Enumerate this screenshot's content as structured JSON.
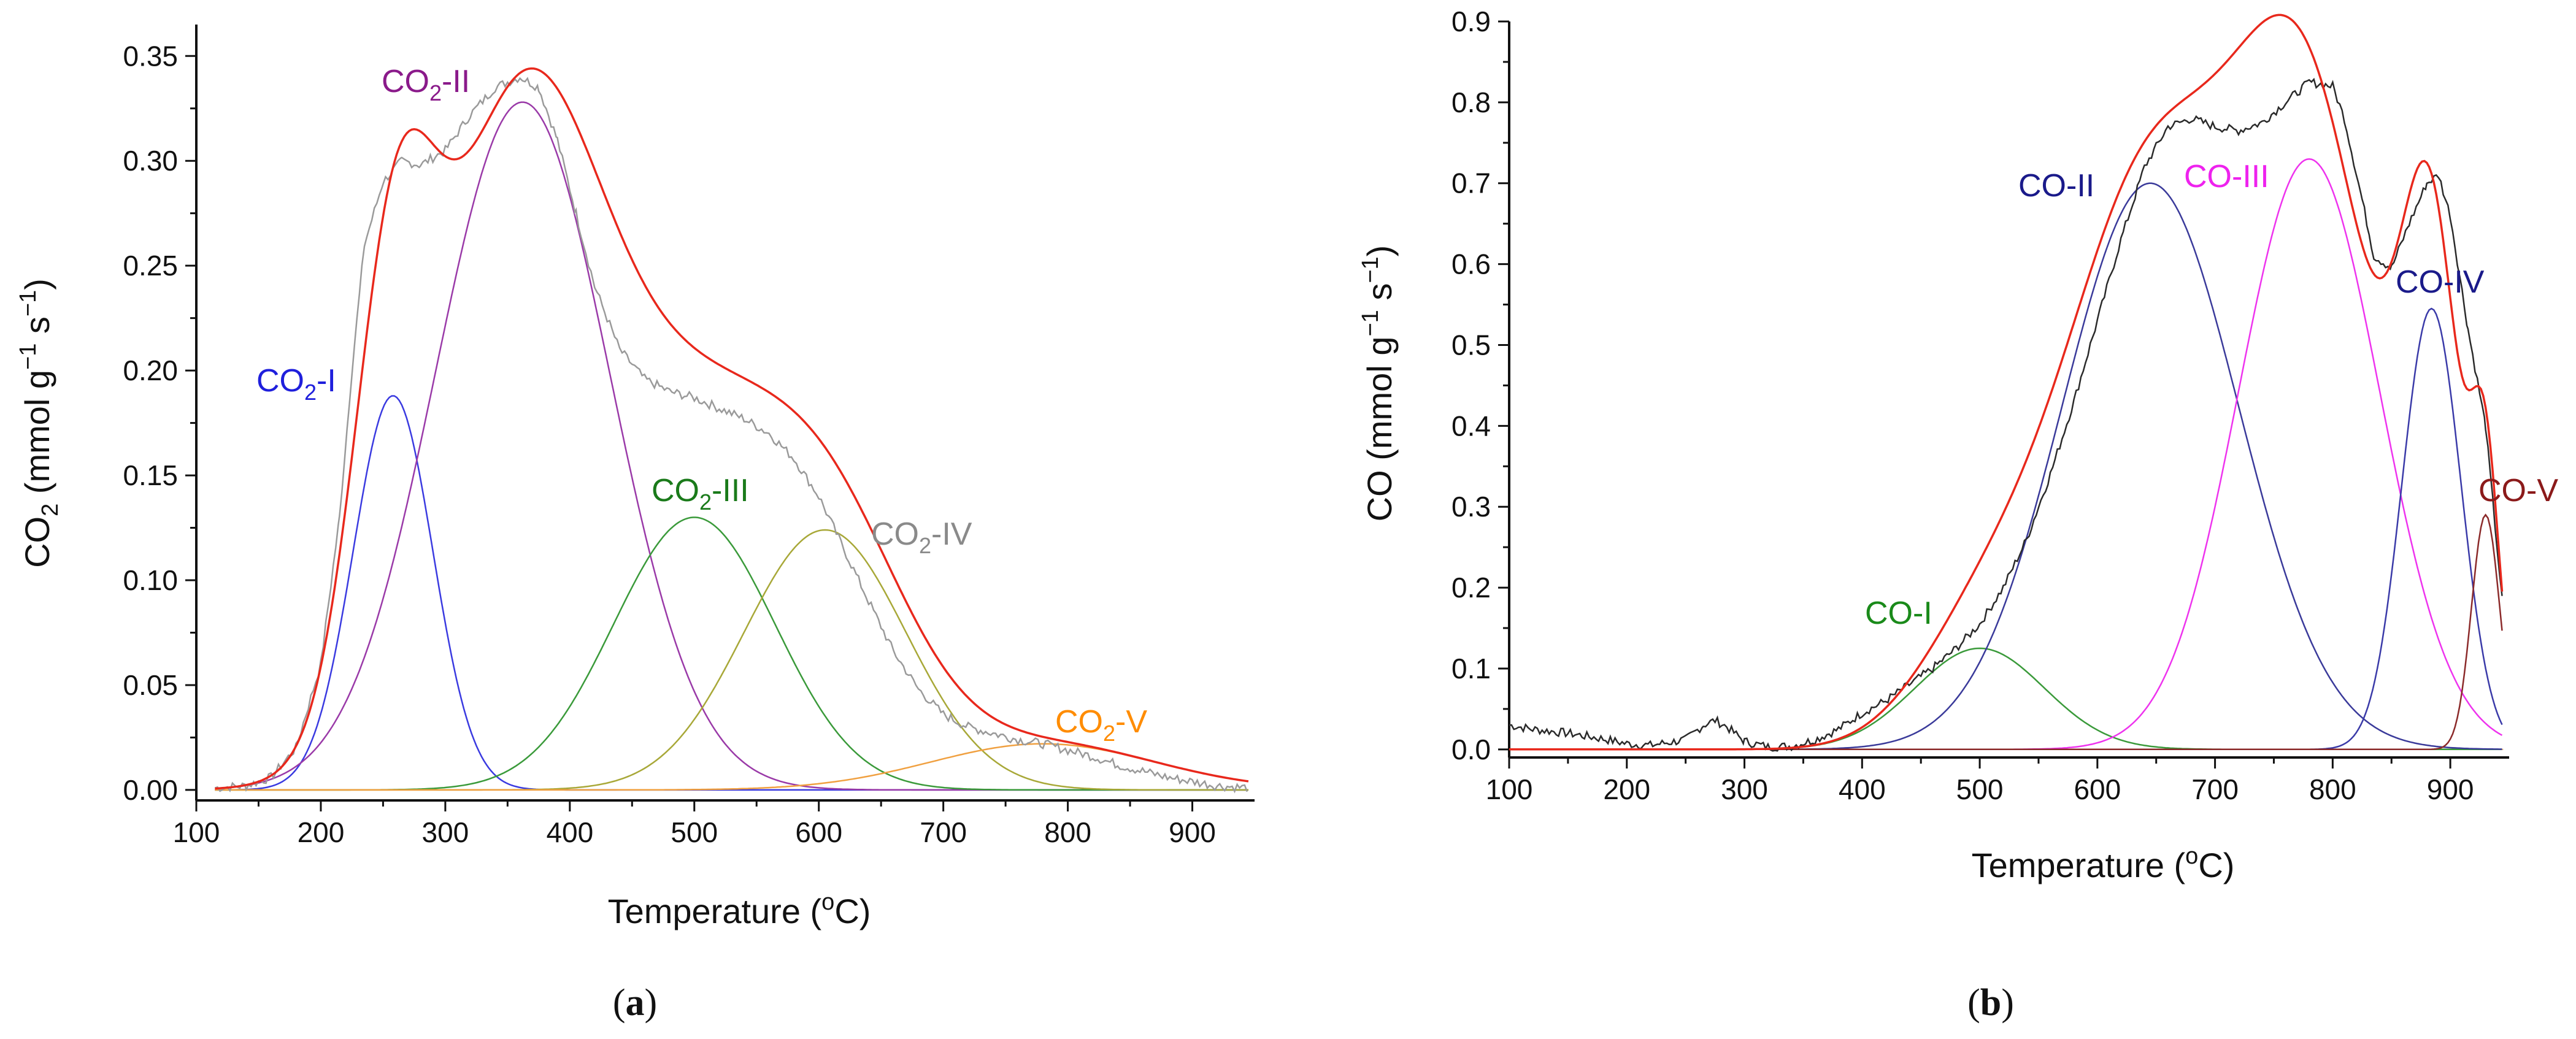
{
  "chart_data": [
    {
      "id": "a",
      "type": "line",
      "panel_label_open": "(",
      "panel_label_letter": "a",
      "panel_label_close": ")",
      "xlabel_text": "Temperature (",
      "xlabel_sup": "o",
      "xlabel_tail": "C)",
      "ylabel": {
        "pre": "CO",
        "sub": "2",
        "mid": " (mmol g",
        "sup1": "−1",
        "space": " s",
        "sup2": "−1",
        "post": ")"
      },
      "xlim": [
        100,
        950
      ],
      "ylim": [
        -0.005,
        0.365
      ],
      "xticks": [
        100,
        200,
        300,
        400,
        500,
        600,
        700,
        800,
        900
      ],
      "xtick_labels": [
        "100",
        "200",
        "300",
        "400",
        "500",
        "600",
        "700",
        "800",
        "900"
      ],
      "yticks": [
        0,
        0.05,
        0.1,
        0.15,
        0.2,
        0.25,
        0.3,
        0.35
      ],
      "ytick_labels": [
        "0.00",
        "0.05",
        "0.10",
        "0.15",
        "0.20",
        "0.25",
        "0.30",
        "0.35"
      ],
      "x_range": [
        115,
        945
      ],
      "peaks": [
        {
          "label": "CO",
          "sub": "2",
          "suffix": "-I",
          "color": "#1f1fdc",
          "amp": 0.188,
          "center": 258,
          "sigma": 32
        },
        {
          "label": "CO",
          "sub": "2",
          "suffix": "-II",
          "color": "#8a1a8a",
          "amp": 0.328,
          "center": 362,
          "sigma": 70
        },
        {
          "label": "CO",
          "sub": "2",
          "suffix": "-III",
          "color": "#1a7a1a",
          "amp": 0.13,
          "center": 500,
          "sigma": 65
        },
        {
          "label": "CO",
          "sub": "2",
          "suffix": "-IV",
          "color": "#8a8a8a",
          "amp": 0.124,
          "center": 605,
          "sigma": 65
        },
        {
          "label": "CO",
          "sub": "2",
          "suffix": "-V",
          "color": "#ff8c00",
          "amp": 0.022,
          "center": 780,
          "sigma": 90
        }
      ],
      "peak_curve_colors": [
        "#3a3ae0",
        "#9a3aa8",
        "#3a9a3a",
        "#a8a838",
        "#f0a040"
      ],
      "fit_color": "#e8281c",
      "experimental_color": "#9a9a9a",
      "experimental_points": [
        [
          115,
          0.001
        ],
        [
          140,
          0.002
        ],
        [
          160,
          0.006
        ],
        [
          180,
          0.02
        ],
        [
          200,
          0.06
        ],
        [
          215,
          0.13
        ],
        [
          225,
          0.2
        ],
        [
          235,
          0.26
        ],
        [
          250,
          0.29
        ],
        [
          265,
          0.3
        ],
        [
          280,
          0.298
        ],
        [
          300,
          0.305
        ],
        [
          320,
          0.322
        ],
        [
          340,
          0.335
        ],
        [
          360,
          0.34
        ],
        [
          375,
          0.335
        ],
        [
          390,
          0.31
        ],
        [
          405,
          0.275
        ],
        [
          420,
          0.24
        ],
        [
          440,
          0.21
        ],
        [
          460,
          0.196
        ],
        [
          480,
          0.19
        ],
        [
          500,
          0.187
        ],
        [
          520,
          0.182
        ],
        [
          540,
          0.177
        ],
        [
          560,
          0.17
        ],
        [
          580,
          0.158
        ],
        [
          600,
          0.14
        ],
        [
          620,
          0.115
        ],
        [
          640,
          0.09
        ],
        [
          660,
          0.066
        ],
        [
          680,
          0.048
        ],
        [
          700,
          0.036
        ],
        [
          720,
          0.03
        ],
        [
          740,
          0.027
        ],
        [
          760,
          0.024
        ],
        [
          780,
          0.022
        ],
        [
          800,
          0.019
        ],
        [
          820,
          0.016
        ],
        [
          840,
          0.012
        ],
        [
          860,
          0.009
        ],
        [
          880,
          0.006
        ],
        [
          900,
          0.004
        ],
        [
          920,
          0.002
        ],
        [
          945,
          0.001
        ]
      ]
    },
    {
      "id": "b",
      "type": "line",
      "panel_label_open": "(",
      "panel_label_letter": "b",
      "panel_label_close": ")",
      "xlabel_text": "Temperature (",
      "xlabel_sup": "o",
      "xlabel_tail": "C)",
      "ylabel": {
        "pre": "CO (mmol g",
        "sup1": "−1",
        "space": " s",
        "sup2": "−1",
        "post": ")"
      },
      "xlim": [
        100,
        950
      ],
      "ylim": [
        -0.01,
        0.9
      ],
      "xticks": [
        100,
        200,
        300,
        400,
        500,
        600,
        700,
        800,
        900
      ],
      "xtick_labels": [
        "100",
        "200",
        "300",
        "400",
        "500",
        "600",
        "700",
        "800",
        "900"
      ],
      "yticks": [
        0,
        0.1,
        0.2,
        0.3,
        0.4,
        0.5,
        0.6,
        0.7,
        0.8,
        0.9
      ],
      "ytick_labels": [
        "0.0",
        "0.1",
        "0.2",
        "0.3",
        "0.4",
        "0.5",
        "0.6",
        "0.7",
        "0.8",
        "0.9"
      ],
      "x_range": [
        100,
        945
      ],
      "peaks": [
        {
          "label": "CO-I",
          "sub": "",
          "suffix": "",
          "color": "#1a8a1a",
          "amp": 0.125,
          "center": 500,
          "sigma": 55
        },
        {
          "label": "CO-II",
          "sub": "",
          "suffix": "",
          "color": "#1a1a8a",
          "amp": 0.7,
          "center": 645,
          "sigma": 75
        },
        {
          "label": "CO-III",
          "sub": "",
          "suffix": "",
          "color": "#ee22ee",
          "amp": 0.73,
          "center": 780,
          "sigma": 60
        },
        {
          "label": "CO-IV",
          "sub": "",
          "suffix": "",
          "color": "#1a1a8a",
          "amp": 0.545,
          "center": 884,
          "sigma": 25
        },
        {
          "label": "CO-V",
          "sub": "",
          "suffix": "",
          "color": "#8b1a1a",
          "amp": 0.29,
          "center": 930,
          "sigma": 12
        }
      ],
      "peak_curve_colors": [
        "#3a9a3a",
        "#3a3a9a",
        "#ee33ee",
        "#3a3aa8",
        "#8b2a2a"
      ],
      "fit_color": "#e8281c",
      "experimental_color": "#2a2a2a",
      "experimental_points": [
        [
          100,
          0.03
        ],
        [
          120,
          0.025
        ],
        [
          150,
          0.02
        ],
        [
          180,
          0.013
        ],
        [
          200,
          0.007
        ],
        [
          220,
          0.005
        ],
        [
          250,
          0.012
        ],
        [
          265,
          0.03
        ],
        [
          275,
          0.036
        ],
        [
          285,
          0.028
        ],
        [
          300,
          0.01
        ],
        [
          320,
          0.003
        ],
        [
          340,
          0.004
        ],
        [
          360,
          0.012
        ],
        [
          380,
          0.025
        ],
        [
          400,
          0.045
        ],
        [
          420,
          0.06
        ],
        [
          440,
          0.08
        ],
        [
          460,
          0.1
        ],
        [
          480,
          0.125
        ],
        [
          500,
          0.155
        ],
        [
          520,
          0.2
        ],
        [
          540,
          0.26
        ],
        [
          560,
          0.34
        ],
        [
          580,
          0.43
        ],
        [
          600,
          0.53
        ],
        [
          620,
          0.63
        ],
        [
          640,
          0.72
        ],
        [
          660,
          0.77
        ],
        [
          680,
          0.78
        ],
        [
          700,
          0.77
        ],
        [
          720,
          0.765
        ],
        [
          740,
          0.775
        ],
        [
          760,
          0.8
        ],
        [
          780,
          0.825
        ],
        [
          800,
          0.82
        ],
        [
          810,
          0.78
        ],
        [
          825,
          0.68
        ],
        [
          835,
          0.61
        ],
        [
          850,
          0.595
        ],
        [
          865,
          0.65
        ],
        [
          880,
          0.7
        ],
        [
          890,
          0.71
        ],
        [
          900,
          0.66
        ],
        [
          915,
          0.52
        ],
        [
          930,
          0.4
        ],
        [
          945,
          0.17
        ]
      ]
    }
  ]
}
